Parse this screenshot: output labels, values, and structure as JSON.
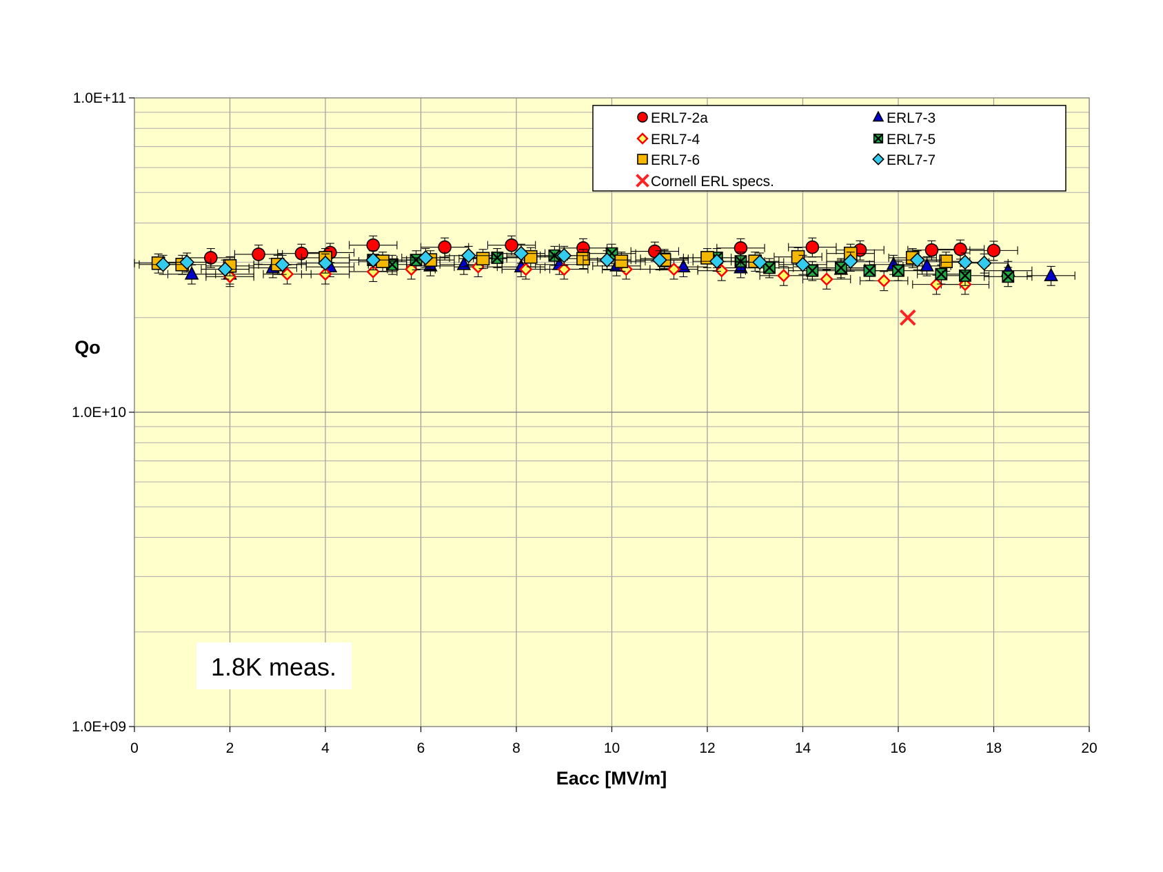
{
  "chart_data": {
    "type": "scatter",
    "xlabel": "Eacc [MV/m]",
    "ylabel": "Qo",
    "xlim": [
      0,
      20
    ],
    "ylim": [
      1000000000.0,
      100000000000.0
    ],
    "yscale": "log",
    "x_ticks": [
      "0",
      "2",
      "4",
      "6",
      "8",
      "10",
      "12",
      "14",
      "16",
      "18",
      "20"
    ],
    "y_ticks": [
      "1.0E+09",
      "1.0E+10",
      "1.0E+11"
    ],
    "grid": true,
    "error_bars": true,
    "legend_position": "top-right",
    "annotation": "1.8K meas.",
    "colors": {
      "plot_bg": "#ffffcc",
      "grid": "#999999"
    },
    "series": [
      {
        "name": "ERL7-2a",
        "marker": "circle",
        "color": "#ff0000",
        "x": [
          1.6,
          2.6,
          3.5,
          4.1,
          5.0,
          6.5,
          7.9,
          9.4,
          10.9,
          12.7,
          14.2,
          15.2,
          16.7,
          17.3,
          18.0
        ],
        "y": [
          31000000000.0,
          31800000000.0,
          32000000000.0,
          32200000000.0,
          34000000000.0,
          33500000000.0,
          34000000000.0,
          33300000000.0,
          32500000000.0,
          33300000000.0,
          33500000000.0,
          32800000000.0,
          32800000000.0,
          33000000000.0,
          32700000000.0
        ]
      },
      {
        "name": "ERL7-3",
        "marker": "triangle",
        "color": "#0000cc",
        "x": [
          1.2,
          2.0,
          2.9,
          4.1,
          6.2,
          6.9,
          8.1,
          8.9,
          10.1,
          11.5,
          12.7,
          14.8,
          15.9,
          16.6,
          18.3,
          19.2
        ],
        "y": [
          27500000000.0,
          27500000000.0,
          28800000000.0,
          29000000000.0,
          29200000000.0,
          29500000000.0,
          29000000000.0,
          29500000000.0,
          29200000000.0,
          29000000000.0,
          28800000000.0,
          28500000000.0,
          29500000000.0,
          29200000000.0,
          28200000000.0,
          27200000000.0
        ]
      },
      {
        "name": "ERL7-4",
        "marker": "diamond-open",
        "color": "#ff0000",
        "x": [
          2.0,
          3.2,
          4.0,
          5.0,
          5.8,
          7.2,
          8.2,
          9.0,
          10.3,
          11.3,
          12.3,
          13.6,
          14.5,
          15.7,
          16.8,
          17.4
        ],
        "y": [
          27000000000.0,
          27500000000.0,
          27500000000.0,
          28000000000.0,
          28500000000.0,
          29000000000.0,
          28500000000.0,
          28500000000.0,
          28500000000.0,
          28500000000.0,
          28200000000.0,
          27200000000.0,
          26500000000.0,
          26200000000.0,
          25500000000.0,
          25500000000.0
        ]
      },
      {
        "name": "ERL7-5",
        "marker": "square-x",
        "color": "#22aa44",
        "x": [
          5.0,
          5.4,
          5.9,
          7.6,
          8.8,
          10.0,
          11.1,
          12.2,
          12.7,
          13.3,
          14.2,
          14.8,
          15.4,
          16.0,
          16.9,
          17.4,
          18.3
        ],
        "y": [
          30500000000.0,
          29500000000.0,
          30500000000.0,
          31000000000.0,
          31500000000.0,
          32000000000.0,
          30800000000.0,
          31000000000.0,
          30200000000.0,
          28800000000.0,
          28200000000.0,
          28800000000.0,
          28200000000.0,
          28200000000.0,
          27500000000.0,
          27200000000.0,
          27000000000.0
        ]
      },
      {
        "name": "ERL7-6",
        "marker": "square",
        "color": "#f5b800",
        "x": [
          0.5,
          1.0,
          2.0,
          3.0,
          4.0,
          5.2,
          6.2,
          7.3,
          8.3,
          9.4,
          10.2,
          11.1,
          12.0,
          13.0,
          13.9,
          15.0,
          16.3,
          17.0
        ],
        "y": [
          29800000000.0,
          29500000000.0,
          29200000000.0,
          29500000000.0,
          31000000000.0,
          30200000000.0,
          30500000000.0,
          30800000000.0,
          31200000000.0,
          30800000000.0,
          30200000000.0,
          30500000000.0,
          31000000000.0,
          30200000000.0,
          31200000000.0,
          32000000000.0,
          31000000000.0,
          30200000000.0
        ]
      },
      {
        "name": "ERL7-7",
        "marker": "diamond",
        "color": "#33ccee",
        "x": [
          0.6,
          1.1,
          1.9,
          3.1,
          4.0,
          5.0,
          6.1,
          7.0,
          8.1,
          9.0,
          9.9,
          11.0,
          12.2,
          13.1,
          14.0,
          15.0,
          16.4,
          17.4,
          17.8
        ],
        "y": [
          29500000000.0,
          30000000000.0,
          28500000000.0,
          29500000000.0,
          29800000000.0,
          30500000000.0,
          31000000000.0,
          31500000000.0,
          32000000000.0,
          31500000000.0,
          30500000000.0,
          30500000000.0,
          30200000000.0,
          30000000000.0,
          29500000000.0,
          30200000000.0,
          30500000000.0,
          30000000000.0,
          29800000000.0
        ]
      },
      {
        "name": "Cornell ERL specs.",
        "marker": "x",
        "color": "#ff2222",
        "error_bars": false,
        "x": [
          16.2
        ],
        "y": [
          20000000000.0
        ]
      }
    ]
  }
}
